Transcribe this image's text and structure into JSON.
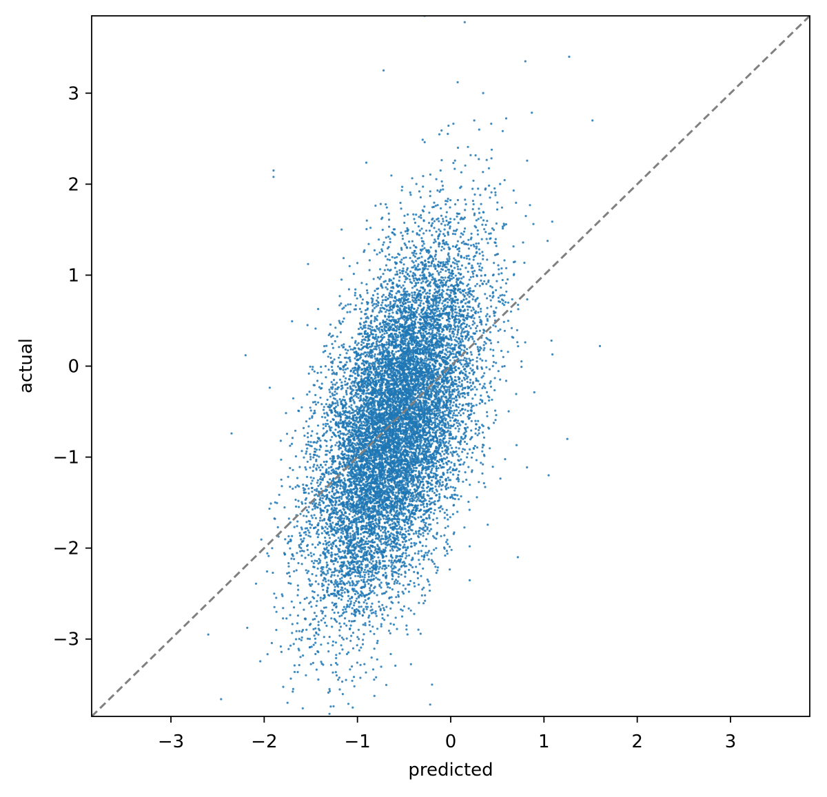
{
  "chart_data": {
    "type": "scatter",
    "title": "",
    "xlabel": "predicted",
    "ylabel": "actual",
    "xlim": [
      -3.85,
      3.85
    ],
    "ylim": [
      -3.85,
      3.85
    ],
    "xticks": [
      -3,
      -2,
      -1,
      0,
      1,
      2,
      3
    ],
    "yticks": [
      -3,
      -2,
      -1,
      0,
      1,
      2,
      3
    ],
    "xtick_labels": [
      "−3",
      "−2",
      "−1",
      "0",
      "1",
      "2",
      "3"
    ],
    "ytick_labels": [
      "−3",
      "−2",
      "−1",
      "0",
      "1",
      "2",
      "3"
    ],
    "grid": false,
    "point_color": "#1f77b4",
    "reference_line": {
      "type": "identity y=x",
      "style": "dashed",
      "color": "#808080"
    },
    "approx_point_count": 12000,
    "series_summary": {
      "x_mean": -0.6,
      "x_std": 0.45,
      "y_mean": -0.65,
      "y_std": 1.0,
      "correlation": 0.55
    },
    "notable_points": [
      {
        "x": 0.15,
        "y": 3.78
      },
      {
        "x": -1.9,
        "y": 2.15
      },
      {
        "x": -1.9,
        "y": 2.08
      },
      {
        "x": -2.2,
        "y": 0.12
      },
      {
        "x": 1.6,
        "y": 0.22
      },
      {
        "x": 1.52,
        "y": 2.7
      },
      {
        "x": 1.27,
        "y": 3.4
      },
      {
        "x": 0.8,
        "y": 3.35
      },
      {
        "x": -0.72,
        "y": 3.25
      },
      {
        "x": -0.28,
        "y": 3.85
      },
      {
        "x": -2.35,
        "y": -0.74
      },
      {
        "x": -2.6,
        "y": -2.95
      },
      {
        "x": -1.75,
        "y": -3.7
      },
      {
        "x": -0.22,
        "y": -3.72
      },
      {
        "x": -0.2,
        "y": -3.5
      },
      {
        "x": -1.3,
        "y": -3.55
      },
      {
        "x": -0.8,
        "y": -3.42
      },
      {
        "x": 1.25,
        "y": -0.8
      },
      {
        "x": 1.05,
        "y": -1.2
      },
      {
        "x": 0.72,
        "y": -2.1
      }
    ]
  }
}
